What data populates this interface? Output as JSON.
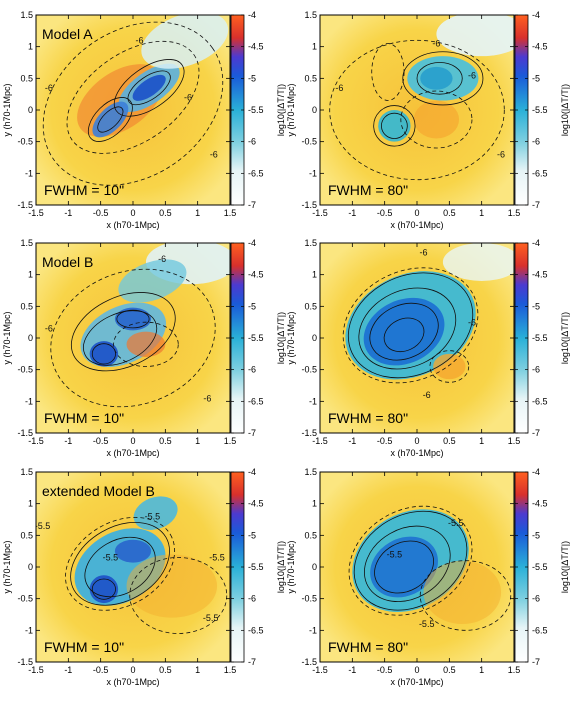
{
  "chart_data": [
    {
      "type": "heatmap",
      "label": "Model A",
      "fwhm": "FWHM = 10\"",
      "xlabel": "x (h70-1Mpc)",
      "ylabel": "y (h70-1Mpc)",
      "xlim": [
        -1.5,
        1.5
      ],
      "ylim": [
        -1.5,
        1.5
      ],
      "xticks": [
        "-1.5",
        "-1",
        "-0.5",
        "0",
        "0.5",
        "1",
        "1.5"
      ],
      "yticks": [
        "-1.5",
        "-1",
        "-0.5",
        "0",
        "0.5",
        "1",
        "1.5"
      ],
      "colorbar": {
        "label": "log10(|ΔT/T|)",
        "range": [
          -7,
          -4
        ],
        "ticks": [
          "-4",
          "-4.5",
          "-5",
          "-5.5",
          "-6",
          "-6.5",
          "-7"
        ]
      },
      "contour_labels": [
        "-6",
        "-6",
        "-6",
        "-6"
      ]
    },
    {
      "type": "heatmap",
      "label": "",
      "fwhm": "FWHM = 80\"",
      "xlabel": "x (h70-1Mpc)",
      "ylabel": "y (h70-1Mpc)",
      "xlim": [
        -1.5,
        1.5
      ],
      "ylim": [
        -1.5,
        1.5
      ],
      "xticks": [
        "-1.5",
        "-1",
        "-0.5",
        "0",
        "0.5",
        "1",
        "1.5"
      ],
      "yticks": [
        "-1.5",
        "-1",
        "-0.5",
        "0",
        "0.5",
        "1",
        "1.5"
      ],
      "colorbar": {
        "label": "log10(|ΔT/T|)",
        "range": [
          -7,
          -4
        ],
        "ticks": [
          "-4",
          "-4.5",
          "-5",
          "-5.5",
          "-6",
          "-6.5",
          "-7"
        ]
      },
      "contour_labels": [
        "-6",
        "-6",
        "-6",
        "-6"
      ]
    },
    {
      "type": "heatmap",
      "label": "Model B",
      "fwhm": "FWHM = 10\"",
      "xlabel": "x (h70-1Mpc)",
      "ylabel": "y (h70-1Mpc)",
      "xlim": [
        -1.5,
        1.5
      ],
      "ylim": [
        -1.5,
        1.5
      ],
      "xticks": [
        "-1.5",
        "-1",
        "-0.5",
        "0",
        "0.5",
        "1",
        "1.5"
      ],
      "yticks": [
        "-1.5",
        "-1",
        "-0.5",
        "0",
        "0.5",
        "1",
        "1.5"
      ],
      "colorbar": {
        "label": "log10(|ΔT/T|)",
        "range": [
          -7,
          -4
        ],
        "ticks": [
          "-4",
          "-4.5",
          "-5",
          "-5.5",
          "-6",
          "-6.5",
          "-7"
        ]
      },
      "contour_labels": [
        "-6",
        "-6",
        "-6"
      ]
    },
    {
      "type": "heatmap",
      "label": "",
      "fwhm": "FWHM = 80\"",
      "xlabel": "x (h70-1Mpc)",
      "ylabel": "y (h70-1Mpc)",
      "xlim": [
        -1.5,
        1.5
      ],
      "ylim": [
        -1.5,
        1.5
      ],
      "xticks": [
        "-1.5",
        "-1",
        "-0.5",
        "0",
        "0.5",
        "1",
        "1.5"
      ],
      "yticks": [
        "-1.5",
        "-1",
        "-0.5",
        "0",
        "0.5",
        "1",
        "1.5"
      ],
      "colorbar": {
        "label": "log10(|ΔT/T|)",
        "range": [
          -7,
          -4
        ],
        "ticks": [
          "-4",
          "-4.5",
          "-5",
          "-5.5",
          "-6",
          "-6.5",
          "-7"
        ]
      },
      "contour_labels": [
        "-6",
        "-6",
        "-6"
      ]
    },
    {
      "type": "heatmap",
      "label": "extended Model B",
      "fwhm": "FWHM = 10\"",
      "xlabel": "x (h70-1Mpc)",
      "ylabel": "y (h70-1Mpc)",
      "xlim": [
        -1.5,
        1.5
      ],
      "ylim": [
        -1.5,
        1.5
      ],
      "xticks": [
        "-1.5",
        "-1",
        "-0.5",
        "0",
        "0.5",
        "1",
        "1.5"
      ],
      "yticks": [
        "-1.5",
        "-1",
        "-0.5",
        "0",
        "0.5",
        "1",
        "1.5"
      ],
      "colorbar": {
        "label": "log10(|ΔT/T|)",
        "range": [
          -7,
          -4
        ],
        "ticks": [
          "-4",
          "-4.5",
          "-5",
          "-5.5",
          "-6",
          "-6.5",
          "-7"
        ]
      },
      "contour_labels": [
        "-5.5",
        "-5.5",
        "-5.5",
        "-5.5",
        "-5.5"
      ]
    },
    {
      "type": "heatmap",
      "label": "",
      "fwhm": "FWHM = 80\"",
      "xlabel": "x (h70-1Mpc)",
      "ylabel": "y (h70-1Mpc)",
      "xlim": [
        -1.5,
        1.5
      ],
      "ylim": [
        -1.5,
        1.5
      ],
      "xticks": [
        "-1.5",
        "-1",
        "-0.5",
        "0",
        "0.5",
        "1",
        "1.5"
      ],
      "yticks": [
        "-1.5",
        "-1",
        "-0.5",
        "0",
        "0.5",
        "1",
        "1.5"
      ],
      "colorbar": {
        "label": "log10(|ΔT/T|)",
        "range": [
          -7,
          -4
        ],
        "ticks": [
          "-4",
          "-4.5",
          "-5",
          "-5.5",
          "-6",
          "-6.5",
          "-7"
        ]
      },
      "contour_labels": [
        "-5.5",
        "-5.5",
        "-5.5"
      ]
    }
  ]
}
